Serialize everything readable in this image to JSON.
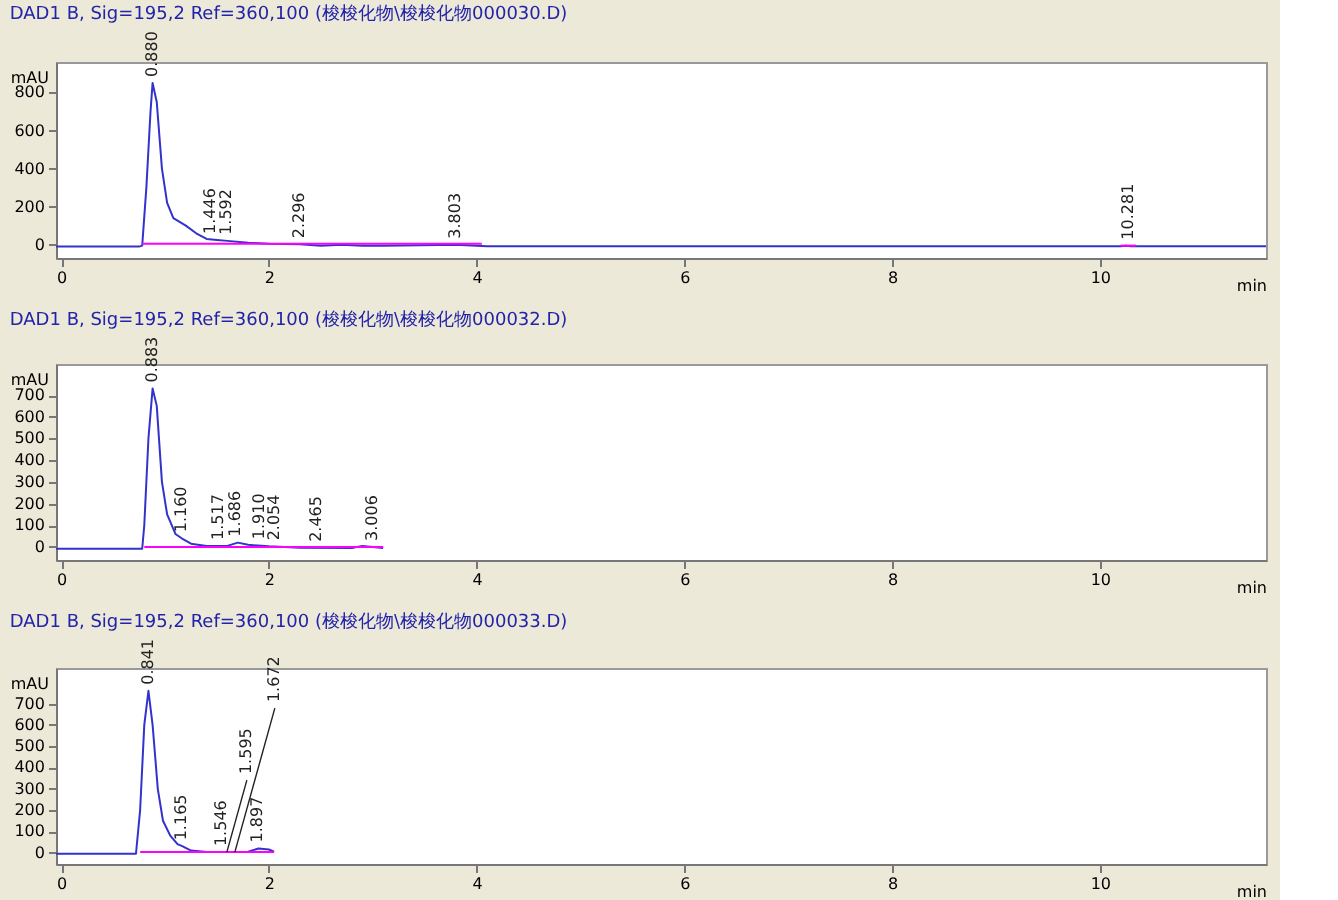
{
  "chart_data": [
    {
      "type": "line",
      "title": "DAD1 B, Sig=195,2 Ref=360,100 (梭梭化物\\梭梭化物000030.D)",
      "xlabel": "min",
      "ylabel": "mAU",
      "xlim": [
        -0.05,
        11.6
      ],
      "xticks": [
        0,
        2,
        4,
        6,
        8,
        10
      ],
      "ylim": [
        -70,
        960
      ],
      "yticks": [
        0,
        200,
        400,
        600,
        800
      ],
      "grid": false,
      "line_style": "solid",
      "marker": "none",
      "series": [
        {
          "color": "#3333cc",
          "x": [
            -0.05,
            0.75,
            0.78,
            0.82,
            0.86,
            0.88,
            0.92,
            0.97,
            1.02,
            1.08,
            1.2,
            1.3,
            1.4,
            1.5,
            1.6,
            1.8,
            2.0,
            2.3,
            2.5,
            2.7,
            2.9,
            3.1,
            3.8,
            4.0,
            4.1,
            10.2,
            10.25,
            10.3,
            11.6
          ],
          "values": [
            -10,
            -10,
            -5,
            300,
            700,
            850,
            750,
            400,
            220,
            140,
            100,
            60,
            30,
            25,
            20,
            10,
            5,
            2,
            -5,
            0,
            -5,
            -5,
            0,
            -5,
            -8,
            -8,
            -5,
            -8,
            -8
          ]
        },
        {
          "color": "#ff00ff",
          "x": [
            0.78,
            4.05
          ],
          "values": [
            5,
            5
          ]
        },
        {
          "color": "#ff00ff",
          "x": [
            10.2,
            10.35
          ],
          "values": [
            -5,
            -5
          ]
        }
      ],
      "annotations": [
        {
          "text": "0.880",
          "x": 0.88,
          "y": 850
        },
        {
          "text": "1.446",
          "x": 1.446,
          "y": 25
        },
        {
          "text": "1.592",
          "x": 1.592,
          "y": 20
        },
        {
          "text": "2.296",
          "x": 2.296,
          "y": 2
        },
        {
          "text": "3.803",
          "x": 3.803,
          "y": 0
        },
        {
          "text": "10.281",
          "x": 10.281,
          "y": -5
        }
      ]
    },
    {
      "type": "line",
      "title": "DAD1 B, Sig=195,2 Ref=360,100 (梭梭化物\\梭梭化物000032.D)",
      "xlabel": "min",
      "ylabel": "mAU",
      "xlim": [
        -0.05,
        11.6
      ],
      "xticks": [
        0,
        2,
        4,
        6,
        8,
        10
      ],
      "ylim": [
        -60,
        843
      ],
      "yticks": [
        0,
        100,
        200,
        300,
        400,
        500,
        600,
        700
      ],
      "grid": false,
      "line_style": "solid",
      "marker": "none",
      "series": [
        {
          "color": "#3333cc",
          "x": [
            -0.05,
            0.78,
            0.8,
            0.84,
            0.88,
            0.92,
            0.97,
            1.02,
            1.1,
            1.16,
            1.25,
            1.4,
            1.6,
            1.7,
            1.8,
            2.0,
            2.3,
            2.8,
            2.9,
            3.0,
            3.1
          ],
          "values": [
            -8,
            -8,
            100,
            500,
            730,
            650,
            300,
            150,
            60,
            40,
            15,
            5,
            5,
            20,
            10,
            3,
            -3,
            -5,
            5,
            0,
            -5
          ]
        },
        {
          "color": "#ff00ff",
          "x": [
            0.8,
            3.1
          ],
          "values": [
            0,
            0
          ]
        }
      ],
      "annotations": [
        {
          "text": "0.883",
          "x": 0.883,
          "y": 730
        },
        {
          "text": "1.160",
          "x": 1.16,
          "y": 40
        },
        {
          "text": "1.517",
          "x": 1.517,
          "y": 5
        },
        {
          "text": "1.686",
          "x": 1.686,
          "y": 20
        },
        {
          "text": "1.910",
          "x": 1.91,
          "y": 8
        },
        {
          "text": "2.054",
          "x": 2.054,
          "y": 3
        },
        {
          "text": "2.465",
          "x": 2.465,
          "y": -4
        },
        {
          "text": "3.006",
          "x": 3.006,
          "y": 0
        }
      ]
    },
    {
      "type": "line",
      "title": "DAD1 B, Sig=195,2 Ref=360,100 (梭梭化物\\梭梭化物000033.D)",
      "xlabel": "min",
      "ylabel": "mAU",
      "xlim": [
        -0.05,
        11.6
      ],
      "xticks": [
        0,
        2,
        4,
        6,
        8,
        10
      ],
      "ylim": [
        -53,
        867
      ],
      "yticks": [
        0,
        100,
        200,
        300,
        400,
        500,
        600,
        700
      ],
      "grid": false,
      "line_style": "solid",
      "marker": "none",
      "series": [
        {
          "color": "#3333cc",
          "x": [
            -0.05,
            0.72,
            0.76,
            0.8,
            0.84,
            0.88,
            0.93,
            0.98,
            1.05,
            1.12,
            1.17,
            1.25,
            1.4,
            1.6,
            1.8,
            1.9,
            2.0,
            2.05
          ],
          "values": [
            -5,
            -5,
            200,
            600,
            760,
            600,
            300,
            150,
            80,
            40,
            30,
            10,
            3,
            3,
            5,
            20,
            15,
            5
          ]
        },
        {
          "color": "#ff00ff",
          "x": [
            0.76,
            2.05
          ],
          "values": [
            3,
            3
          ]
        }
      ],
      "annotations": [
        {
          "text": "0.841",
          "x": 0.841,
          "y": 760
        },
        {
          "text": "1.165",
          "x": 1.165,
          "y": 30
        },
        {
          "text": "1.546",
          "x": 1.546,
          "y": 3
        },
        {
          "text": "1.595",
          "x": 1.595,
          "y": 3
        },
        {
          "text": "1.672",
          "x": 1.672,
          "y": 3
        },
        {
          "text": "1.897",
          "x": 1.897,
          "y": 20
        }
      ]
    }
  ]
}
